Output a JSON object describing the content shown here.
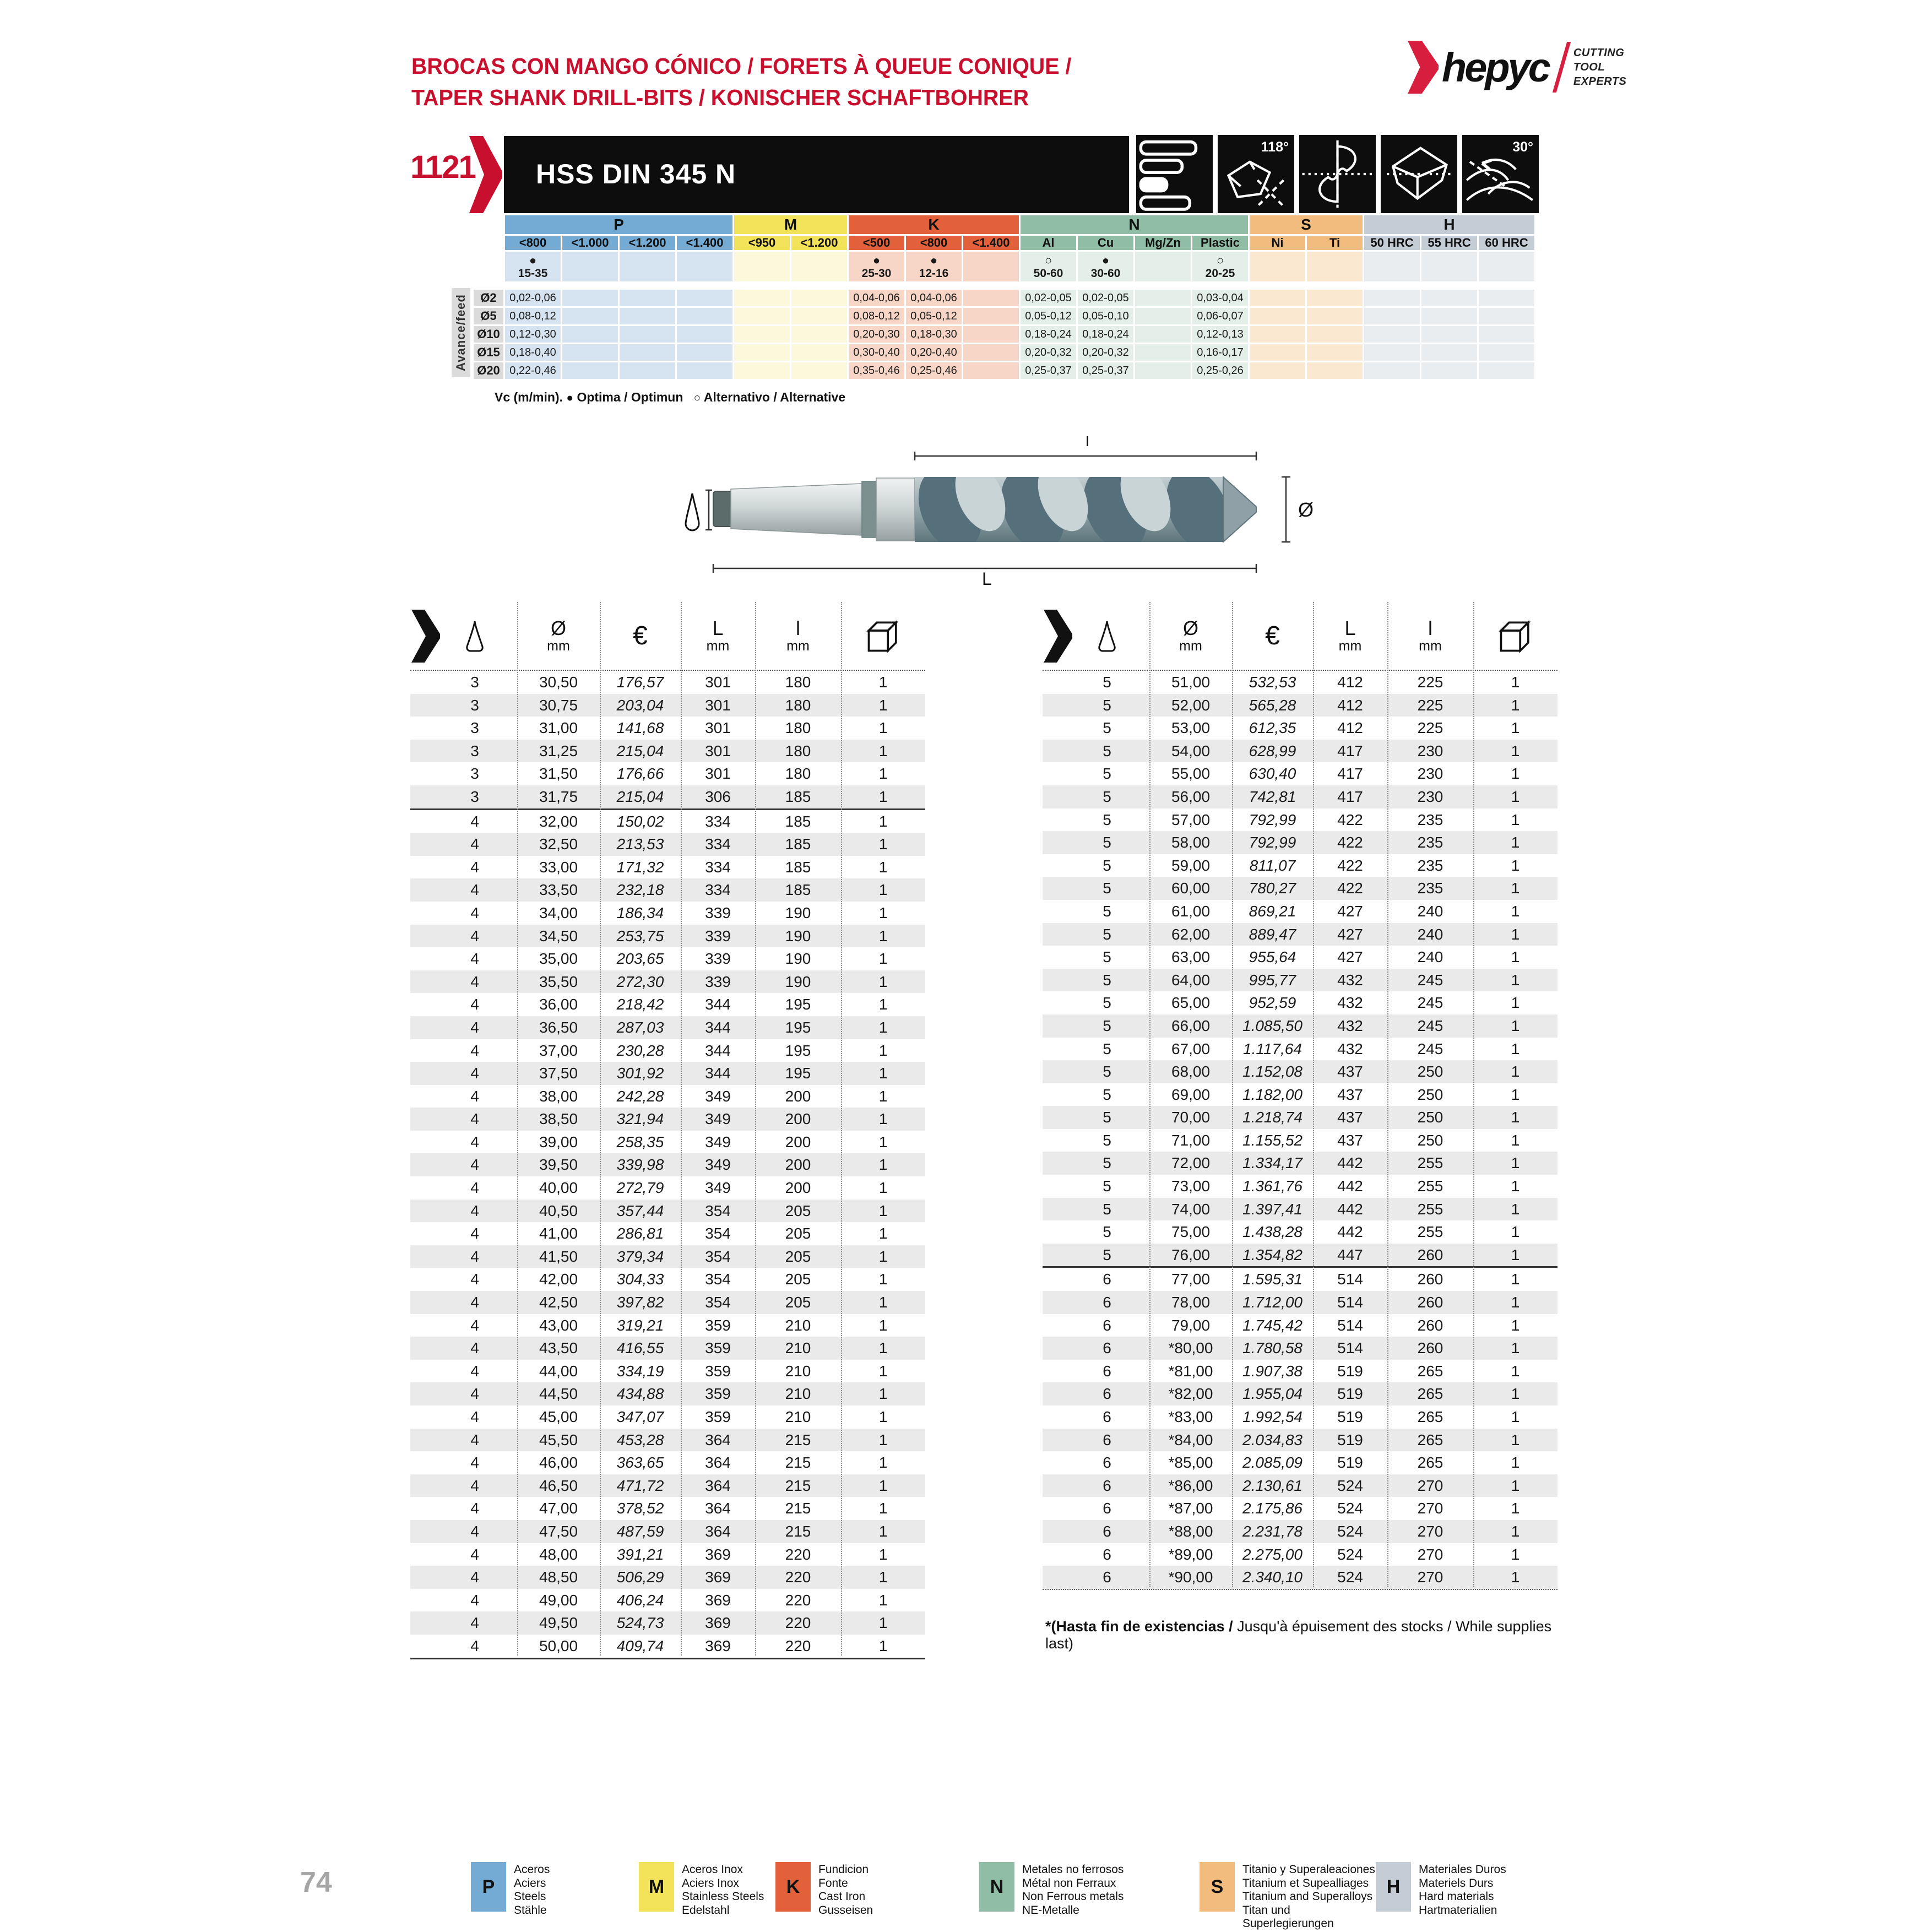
{
  "page": {
    "number": "74"
  },
  "header": {
    "title_line1": "BROCAS CON MANGO CÓNICO / FORETS À QUEUE CONIQUE /",
    "title_line2": "TAPER SHANK DRILL-BITS / KONISCHER SCHAFTBOHRER",
    "accent_color": "#C8102E"
  },
  "logo": {
    "brand": "hepyc",
    "tagline1": "CUTTING",
    "tagline2": "TOOL",
    "tagline3": "EXPERTS"
  },
  "product": {
    "code": "1121",
    "name": "HSS DIN 345 N",
    "point_angle": "118°",
    "helix_angle": "30°"
  },
  "speed_table": {
    "corner_label": "Avance/feed",
    "groups": [
      {
        "key": "P",
        "span": 4,
        "color": "#73ABD5"
      },
      {
        "key": "M",
        "span": 2,
        "color": "#F3E35A"
      },
      {
        "key": "K",
        "span": 3,
        "color": "#E2603A"
      },
      {
        "key": "N",
        "span": 4,
        "color": "#90BDA5"
      },
      {
        "key": "S",
        "span": 2,
        "color": "#F3BC7F"
      },
      {
        "key": "H",
        "span": 3,
        "color": "#C4CDD5"
      }
    ],
    "columns": [
      {
        "g": "P",
        "label": "<800",
        "color": "#73ABD5",
        "tint": "#D6E4F1",
        "sym": "●",
        "rng": "15-35"
      },
      {
        "g": "P",
        "label": "<1.000",
        "color": "#73ABD5",
        "tint": "#D6E4F1"
      },
      {
        "g": "P",
        "label": "<1.200",
        "color": "#73ABD5",
        "tint": "#D6E4F1"
      },
      {
        "g": "P",
        "label": "<1.400",
        "color": "#73ABD5",
        "tint": "#D6E4F1"
      },
      {
        "g": "M",
        "label": "<950",
        "color": "#F3E35A",
        "tint": "#FBF8DB"
      },
      {
        "g": "M",
        "label": "<1.200",
        "color": "#F3E35A",
        "tint": "#FBF8DB"
      },
      {
        "g": "K",
        "label": "<500",
        "color": "#E2603A",
        "tint": "#F7D6C7",
        "sym": "●",
        "rng": "25-30"
      },
      {
        "g": "K",
        "label": "<800",
        "color": "#E2603A",
        "tint": "#F7D6C7",
        "sym": "●",
        "rng": "12-16"
      },
      {
        "g": "K",
        "label": "<1.400",
        "color": "#E2603A",
        "tint": "#F7D6C7"
      },
      {
        "g": "N",
        "label": "Al",
        "color": "#90BDA5",
        "tint": "#E5EFE9",
        "sym": "○",
        "rng": "50-60"
      },
      {
        "g": "N",
        "label": "Cu",
        "color": "#90BDA5",
        "tint": "#E5EFE9",
        "sym": "●",
        "rng": "30-60"
      },
      {
        "g": "N",
        "label": "Mg/Zn",
        "color": "#90BDA5",
        "tint": "#E5EFE9"
      },
      {
        "g": "N",
        "label": "Plastic",
        "color": "#90BDA5",
        "tint": "#E5EFE9",
        "sym": "○",
        "rng": "20-25"
      },
      {
        "g": "S",
        "label": "Ni",
        "color": "#F3BC7F",
        "tint": "#FBE8D0"
      },
      {
        "g": "S",
        "label": "Ti",
        "color": "#F3BC7F",
        "tint": "#FBE8D0"
      },
      {
        "g": "H",
        "label": "50 HRC",
        "color": "#C4CDD5",
        "tint": "#EAEDEF"
      },
      {
        "g": "H",
        "label": "55 HRC",
        "color": "#C4CDD5",
        "tint": "#EAEDEF"
      },
      {
        "g": "H",
        "label": "60 HRC",
        "color": "#C4CDD5",
        "tint": "#EAEDEF"
      }
    ],
    "rows": [
      {
        "dia": "Ø2",
        "values": [
          "0,02-0,06",
          "",
          "",
          "",
          "",
          "",
          "0,04-0,06",
          "0,04-0,06",
          "",
          "0,02-0,05",
          "0,02-0,05",
          "",
          "0,03-0,04",
          "",
          "",
          "",
          "",
          ""
        ]
      },
      {
        "dia": "Ø5",
        "values": [
          "0,08-0,12",
          "",
          "",
          "",
          "",
          "",
          "0,08-0,12",
          "0,05-0,12",
          "",
          "0,05-0,12",
          "0,05-0,10",
          "",
          "0,06-0,07",
          "",
          "",
          "",
          "",
          ""
        ]
      },
      {
        "dia": "Ø10",
        "values": [
          "0,12-0,30",
          "",
          "",
          "",
          "",
          "",
          "0,20-0,30",
          "0,18-0,30",
          "",
          "0,18-0,24",
          "0,18-0,24",
          "",
          "0,12-0,13",
          "",
          "",
          "",
          "",
          ""
        ]
      },
      {
        "dia": "Ø15",
        "values": [
          "0,18-0,40",
          "",
          "",
          "",
          "",
          "",
          "0,30-0,40",
          "0,20-0,40",
          "",
          "0,20-0,32",
          "0,20-0,32",
          "",
          "0,16-0,17",
          "",
          "",
          "",
          "",
          ""
        ]
      },
      {
        "dia": "Ø20",
        "values": [
          "0,22-0,46",
          "",
          "",
          "",
          "",
          "",
          "0,35-0,46",
          "0,25-0,46",
          "",
          "0,25-0,37",
          "0,25-0,37",
          "",
          "0,25-0,26",
          "",
          "",
          "",
          "",
          ""
        ]
      }
    ],
    "legend_vc": "Vc (m/min).",
    "legend_opt_sym": "●",
    "legend_opt": "Optima / Optimun",
    "legend_alt_sym": "○",
    "legend_alt": "Alternativo / Alternative"
  },
  "diagram": {
    "dim_flute": "l",
    "dim_total": "L",
    "dim_dia": "Ø"
  },
  "catalog": {
    "headers": {
      "dia": "Ø",
      "mm": "mm",
      "euro": "€",
      "len": "L",
      "flute": "l"
    },
    "left": {
      "separator_after_index": 5,
      "rows": [
        [
          "3",
          "30,50",
          "176,57",
          "301",
          "180",
          "1"
        ],
        [
          "3",
          "30,75",
          "203,04",
          "301",
          "180",
          "1"
        ],
        [
          "3",
          "31,00",
          "141,68",
          "301",
          "180",
          "1"
        ],
        [
          "3",
          "31,25",
          "215,04",
          "301",
          "180",
          "1"
        ],
        [
          "3",
          "31,50",
          "176,66",
          "301",
          "180",
          "1"
        ],
        [
          "3",
          "31,75",
          "215,04",
          "306",
          "185",
          "1"
        ],
        [
          "4",
          "32,00",
          "150,02",
          "334",
          "185",
          "1"
        ],
        [
          "4",
          "32,50",
          "213,53",
          "334",
          "185",
          "1"
        ],
        [
          "4",
          "33,00",
          "171,32",
          "334",
          "185",
          "1"
        ],
        [
          "4",
          "33,50",
          "232,18",
          "334",
          "185",
          "1"
        ],
        [
          "4",
          "34,00",
          "186,34",
          "339",
          "190",
          "1"
        ],
        [
          "4",
          "34,50",
          "253,75",
          "339",
          "190",
          "1"
        ],
        [
          "4",
          "35,00",
          "203,65",
          "339",
          "190",
          "1"
        ],
        [
          "4",
          "35,50",
          "272,30",
          "339",
          "190",
          "1"
        ],
        [
          "4",
          "36,00",
          "218,42",
          "344",
          "195",
          "1"
        ],
        [
          "4",
          "36,50",
          "287,03",
          "344",
          "195",
          "1"
        ],
        [
          "4",
          "37,00",
          "230,28",
          "344",
          "195",
          "1"
        ],
        [
          "4",
          "37,50",
          "301,92",
          "344",
          "195",
          "1"
        ],
        [
          "4",
          "38,00",
          "242,28",
          "349",
          "200",
          "1"
        ],
        [
          "4",
          "38,50",
          "321,94",
          "349",
          "200",
          "1"
        ],
        [
          "4",
          "39,00",
          "258,35",
          "349",
          "200",
          "1"
        ],
        [
          "4",
          "39,50",
          "339,98",
          "349",
          "200",
          "1"
        ],
        [
          "4",
          "40,00",
          "272,79",
          "349",
          "200",
          "1"
        ],
        [
          "4",
          "40,50",
          "357,44",
          "354",
          "205",
          "1"
        ],
        [
          "4",
          "41,00",
          "286,81",
          "354",
          "205",
          "1"
        ],
        [
          "4",
          "41,50",
          "379,34",
          "354",
          "205",
          "1"
        ],
        [
          "4",
          "42,00",
          "304,33",
          "354",
          "205",
          "1"
        ],
        [
          "4",
          "42,50",
          "397,82",
          "354",
          "205",
          "1"
        ],
        [
          "4",
          "43,00",
          "319,21",
          "359",
          "210",
          "1"
        ],
        [
          "4",
          "43,50",
          "416,55",
          "359",
          "210",
          "1"
        ],
        [
          "4",
          "44,00",
          "334,19",
          "359",
          "210",
          "1"
        ],
        [
          "4",
          "44,50",
          "434,88",
          "359",
          "210",
          "1"
        ],
        [
          "4",
          "45,00",
          "347,07",
          "359",
          "210",
          "1"
        ],
        [
          "4",
          "45,50",
          "453,28",
          "364",
          "215",
          "1"
        ],
        [
          "4",
          "46,00",
          "363,65",
          "364",
          "215",
          "1"
        ],
        [
          "4",
          "46,50",
          "471,72",
          "364",
          "215",
          "1"
        ],
        [
          "4",
          "47,00",
          "378,52",
          "364",
          "215",
          "1"
        ],
        [
          "4",
          "47,50",
          "487,59",
          "364",
          "215",
          "1"
        ],
        [
          "4",
          "48,00",
          "391,21",
          "369",
          "220",
          "1"
        ],
        [
          "4",
          "48,50",
          "506,29",
          "369",
          "220",
          "1"
        ],
        [
          "4",
          "49,00",
          "406,24",
          "369",
          "220",
          "1"
        ],
        [
          "4",
          "49,50",
          "524,73",
          "369",
          "220",
          "1"
        ],
        [
          "4",
          "50,00",
          "409,74",
          "369",
          "220",
          "1"
        ]
      ]
    },
    "right": {
      "separator_after_index": 25,
      "rows": [
        [
          "5",
          "51,00",
          "532,53",
          "412",
          "225",
          "1"
        ],
        [
          "5",
          "52,00",
          "565,28",
          "412",
          "225",
          "1"
        ],
        [
          "5",
          "53,00",
          "612,35",
          "412",
          "225",
          "1"
        ],
        [
          "5",
          "54,00",
          "628,99",
          "417",
          "230",
          "1"
        ],
        [
          "5",
          "55,00",
          "630,40",
          "417",
          "230",
          "1"
        ],
        [
          "5",
          "56,00",
          "742,81",
          "417",
          "230",
          "1"
        ],
        [
          "5",
          "57,00",
          "792,99",
          "422",
          "235",
          "1"
        ],
        [
          "5",
          "58,00",
          "792,99",
          "422",
          "235",
          "1"
        ],
        [
          "5",
          "59,00",
          "811,07",
          "422",
          "235",
          "1"
        ],
        [
          "5",
          "60,00",
          "780,27",
          "422",
          "235",
          "1"
        ],
        [
          "5",
          "61,00",
          "869,21",
          "427",
          "240",
          "1"
        ],
        [
          "5",
          "62,00",
          "889,47",
          "427",
          "240",
          "1"
        ],
        [
          "5",
          "63,00",
          "955,64",
          "427",
          "240",
          "1"
        ],
        [
          "5",
          "64,00",
          "995,77",
          "432",
          "245",
          "1"
        ],
        [
          "5",
          "65,00",
          "952,59",
          "432",
          "245",
          "1"
        ],
        [
          "5",
          "66,00",
          "1.085,50",
          "432",
          "245",
          "1"
        ],
        [
          "5",
          "67,00",
          "1.117,64",
          "432",
          "245",
          "1"
        ],
        [
          "5",
          "68,00",
          "1.152,08",
          "437",
          "250",
          "1"
        ],
        [
          "5",
          "69,00",
          "1.182,00",
          "437",
          "250",
          "1"
        ],
        [
          "5",
          "70,00",
          "1.218,74",
          "437",
          "250",
          "1"
        ],
        [
          "5",
          "71,00",
          "1.155,52",
          "437",
          "250",
          "1"
        ],
        [
          "5",
          "72,00",
          "1.334,17",
          "442",
          "255",
          "1"
        ],
        [
          "5",
          "73,00",
          "1.361,76",
          "442",
          "255",
          "1"
        ],
        [
          "5",
          "74,00",
          "1.397,41",
          "442",
          "255",
          "1"
        ],
        [
          "5",
          "75,00",
          "1.438,28",
          "442",
          "255",
          "1"
        ],
        [
          "5",
          "76,00",
          "1.354,82",
          "447",
          "260",
          "1"
        ],
        [
          "6",
          "77,00",
          "1.595,31",
          "514",
          "260",
          "1"
        ],
        [
          "6",
          "78,00",
          "1.712,00",
          "514",
          "260",
          "1"
        ],
        [
          "6",
          "79,00",
          "1.745,42",
          "514",
          "260",
          "1"
        ],
        [
          "6",
          "*80,00",
          "1.780,58",
          "514",
          "260",
          "1"
        ],
        [
          "6",
          "*81,00",
          "1.907,38",
          "519",
          "265",
          "1"
        ],
        [
          "6",
          "*82,00",
          "1.955,04",
          "519",
          "265",
          "1"
        ],
        [
          "6",
          "*83,00",
          "1.992,54",
          "519",
          "265",
          "1"
        ],
        [
          "6",
          "*84,00",
          "2.034,83",
          "519",
          "265",
          "1"
        ],
        [
          "6",
          "*85,00",
          "2.085,09",
          "519",
          "265",
          "1"
        ],
        [
          "6",
          "*86,00",
          "2.130,61",
          "524",
          "270",
          "1"
        ],
        [
          "6",
          "*87,00",
          "2.175,86",
          "524",
          "270",
          "1"
        ],
        [
          "6",
          "*88,00",
          "2.231,78",
          "524",
          "270",
          "1"
        ],
        [
          "6",
          "*89,00",
          "2.275,00",
          "524",
          "270",
          "1"
        ],
        [
          "6",
          "*90,00",
          "2.340,10",
          "524",
          "270",
          "1"
        ]
      ]
    }
  },
  "footnote": {
    "bold": "*(Hasta fin de existencias /",
    "rest": " Jusqu'à épuisement des stocks / While supplies last)"
  },
  "legend": {
    "items": [
      {
        "key": "P",
        "color": "#73ABD5",
        "lines": [
          "Aceros",
          "Aciers",
          "Steels",
          "Stähle"
        ]
      },
      {
        "key": "M",
        "color": "#F3E35A",
        "lines": [
          "Aceros Inox",
          "Aciers Inox",
          "Stainless Steels",
          "Edelstahl"
        ]
      },
      {
        "key": "K",
        "color": "#E2603A",
        "lines": [
          "Fundicion",
          "Fonte",
          "Cast Iron",
          "Gusseisen"
        ]
      },
      {
        "key": "N",
        "color": "#90BDA5",
        "lines": [
          "Metales no ferrosos",
          "Métal non Ferraux",
          "Non Ferrous metals",
          "NE-Metalle"
        ]
      },
      {
        "key": "S",
        "color": "#F3BC7F",
        "lines": [
          "Titanio y Superaleaciones",
          "Titanium et Supealliages",
          "Titanium and Superalloys",
          "Titan und Superlegierungen"
        ]
      },
      {
        "key": "H",
        "color": "#C4CDD5",
        "lines": [
          "Materiales Duros",
          "Materiels Durs",
          "Hard materials",
          "Hartmaterialien"
        ]
      }
    ]
  }
}
